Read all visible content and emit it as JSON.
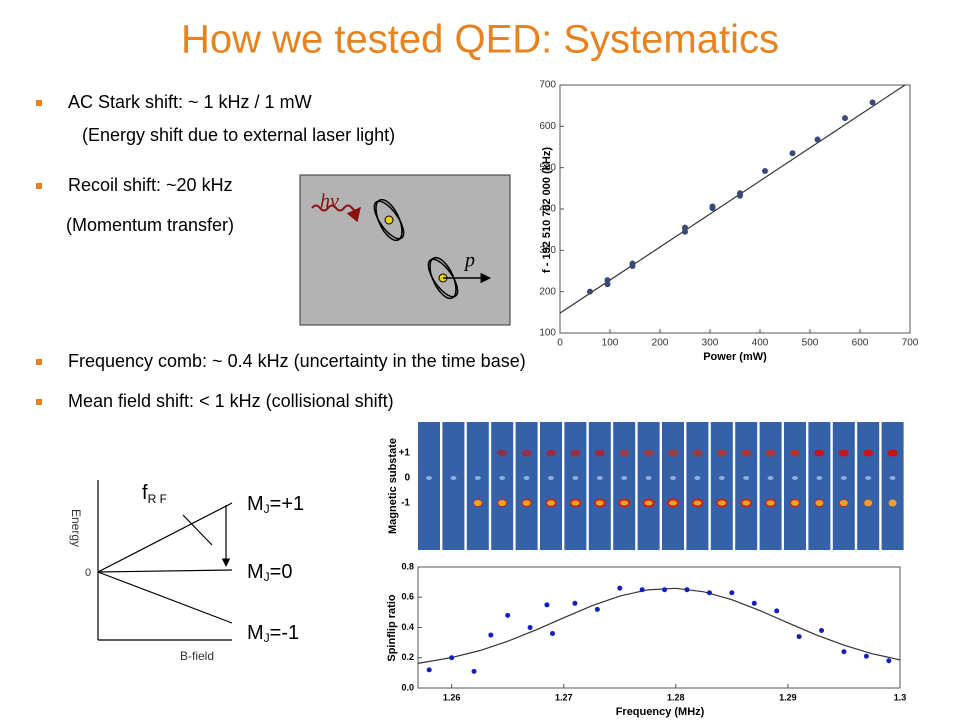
{
  "title": "How we tested QED: Systematics",
  "bullets": [
    {
      "text": "AC Stark shift: ~ 1 kHz / 1 mW",
      "note": "(Energy shift due to external laser light)"
    },
    {
      "text": "Recoil shift: ~20 kHz",
      "note": "(Momentum transfer)"
    },
    {
      "text": "Frequency comb: ~ 0.4 kHz (uncertainty in the time base)"
    },
    {
      "text": "Mean field shift: < 1 kHz (collisional shift)"
    }
  ],
  "recoil_figure": {
    "photon": "hν",
    "momentum": "p"
  },
  "stark_chart": {
    "type": "scatter",
    "xlabel": "Power (mW)",
    "ylabel": "f - 192 510 702 000 (kHz)",
    "color": "#3a4a78",
    "x": [
      60,
      95,
      95,
      145,
      145,
      250,
      250,
      305,
      305,
      360,
      360,
      410,
      465,
      515,
      570,
      625
    ],
    "values": [
      200,
      218,
      228,
      262,
      268,
      345,
      355,
      402,
      406,
      432,
      438,
      492,
      535,
      568,
      620,
      658
    ],
    "fit": {
      "x": [
        0,
        690
      ],
      "y": [
        148,
        700
      ]
    },
    "xlim": [
      0,
      700
    ],
    "ylim": [
      100,
      700
    ],
    "xticks": [
      0,
      100,
      200,
      300,
      400,
      500,
      600,
      700
    ],
    "yticks": [
      100,
      200,
      300,
      400,
      500,
      600,
      700
    ]
  },
  "images": {
    "ylabel": "Magnetic substate",
    "rows": [
      "+1",
      "0",
      "-1"
    ]
  },
  "spinflip_chart": {
    "type": "scatter",
    "xlabel": "Frequency (MHz)",
    "ylabel": "Spinflip ratio",
    "color": "#1020c0",
    "x": [
      1.258,
      1.26,
      1.262,
      1.2635,
      1.265,
      1.267,
      1.2685,
      1.269,
      1.271,
      1.273,
      1.275,
      1.277,
      1.279,
      1.281,
      1.283,
      1.285,
      1.287,
      1.289,
      1.291,
      1.293,
      1.295,
      1.297,
      1.299
    ],
    "values": [
      0.12,
      0.2,
      0.11,
      0.35,
      0.48,
      0.4,
      0.55,
      0.36,
      0.56,
      0.52,
      0.66,
      0.65,
      0.65,
      0.65,
      0.63,
      0.63,
      0.56,
      0.51,
      0.34,
      0.38,
      0.24,
      0.21,
      0.18
    ],
    "fit": {
      "x": [
        1.257,
        1.26,
        1.2625,
        1.265,
        1.2675,
        1.27,
        1.2725,
        1.275,
        1.2775,
        1.28,
        1.2825,
        1.285,
        1.2875,
        1.29,
        1.2925,
        1.295,
        1.2975,
        1.3
      ],
      "y": [
        0.163,
        0.201,
        0.247,
        0.309,
        0.383,
        0.464,
        0.543,
        0.608,
        0.649,
        0.659,
        0.636,
        0.584,
        0.512,
        0.431,
        0.352,
        0.283,
        0.227,
        0.186
      ]
    },
    "xlim": [
      1.257,
      1.3
    ],
    "ylim": [
      0,
      0.8
    ],
    "xticks": [
      1.26,
      1.27,
      1.28,
      1.29,
      1.3
    ],
    "yticks": [
      {
        "value": 0,
        "label": "0.0"
      },
      0.2,
      0.4,
      0.6,
      0.8
    ]
  },
  "energy_diagram": {
    "yaxis": "Energy",
    "origin": "0",
    "xaxis": "B-field",
    "rf": {
      "main": "f",
      "sub": "R F"
    },
    "levels": [
      {
        "main": "M",
        "sub": "J",
        "rest": "=+1"
      },
      {
        "main": "M",
        "sub": "J",
        "rest": "=0"
      },
      {
        "main": "M",
        "sub": "J",
        "rest": "=-1"
      }
    ]
  }
}
